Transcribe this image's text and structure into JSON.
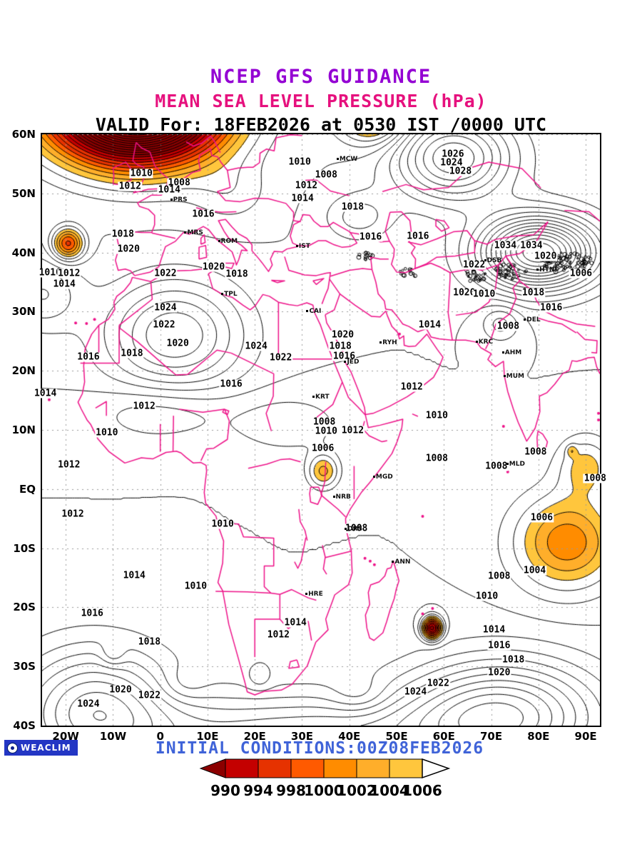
{
  "header": {
    "line1": "NCEP GFS GUIDANCE",
    "line2": "MEAN SEA LEVEL PRESSURE (hPa)",
    "line3": "VALID For: 18FEB2026 at 0530 IST /0000 UTC",
    "colors": {
      "title_source": "#9400d3",
      "title_variable": "#e6117e",
      "valid_line": "#000000"
    }
  },
  "map": {
    "lat_ticks": [
      {
        "label": "60N",
        "value": 60
      },
      {
        "label": "50N",
        "value": 50
      },
      {
        "label": "40N",
        "value": 40
      },
      {
        "label": "30N",
        "value": 30
      },
      {
        "label": "20N",
        "value": 20
      },
      {
        "label": "10N",
        "value": 10
      },
      {
        "label": "EQ",
        "value": 0
      },
      {
        "label": "10S",
        "value": -10
      },
      {
        "label": "20S",
        "value": -20
      },
      {
        "label": "30S",
        "value": -30
      },
      {
        "label": "40S",
        "value": -40
      }
    ],
    "lon_ticks": [
      {
        "label": "20W",
        "value": -20
      },
      {
        "label": "10W",
        "value": -10
      },
      {
        "label": "0",
        "value": 0
      },
      {
        "label": "10E",
        "value": 10
      },
      {
        "label": "20E",
        "value": 20
      },
      {
        "label": "30E",
        "value": 30
      },
      {
        "label": "40E",
        "value": 40
      },
      {
        "label": "50E",
        "value": 50
      },
      {
        "label": "60E",
        "value": 60
      },
      {
        "label": "70E",
        "value": 70
      },
      {
        "label": "80E",
        "value": 80
      },
      {
        "label": "90E",
        "value": 90
      }
    ],
    "grid_color": "#999999",
    "frame_color": "#000000"
  },
  "chart_data": {
    "type": "contour-map",
    "variable": "mean sea level pressure",
    "units": "hPa",
    "contour_interval": 2,
    "lon_range": [
      -25,
      93
    ],
    "lat_range": [
      -40,
      60
    ],
    "base_pressure": 1012,
    "contour_color": "#000000",
    "coastline_color": "#ee1289",
    "fill_levels": [
      990,
      994,
      998,
      1000,
      1002,
      1004,
      1006
    ],
    "pressure_systems": [
      {
        "name": "north-atlantic-deep-low",
        "lon": -5,
        "lat": 65,
        "amp": -58,
        "rx": 17,
        "ry": 9
      },
      {
        "name": "azores-ridge",
        "lon": -25,
        "lat": 33,
        "amp": 6,
        "rx": 8,
        "ry": 6
      },
      {
        "name": "atlantic-low",
        "lon": -19.5,
        "lat": 41.5,
        "amp": -15,
        "rx": 3.2,
        "ry": 2.6
      },
      {
        "name": "north-africa-high",
        "lon": 3,
        "lat": 26,
        "amp": 12,
        "rx": 14,
        "ry": 9
      },
      {
        "name": "itcz-west",
        "lon": 0,
        "lat": 13,
        "amp": -4,
        "rx": 14,
        "ry": 5
      },
      {
        "name": "itcz-east",
        "lon": 27,
        "lat": 11,
        "amp": -3.5,
        "rx": 12,
        "ry": 5
      },
      {
        "name": "east-africa-low",
        "lon": 34.5,
        "lat": 3,
        "amp": -8.5,
        "rx": 3.2,
        "ry": 2.8
      },
      {
        "name": "south-atlantic-high",
        "lon": -14,
        "lat": -37,
        "amp": 14,
        "rx": 16,
        "ry": 10
      },
      {
        "name": "south-indian-high",
        "lon": 72,
        "lat": -38,
        "amp": 17,
        "rx": 20,
        "ry": 9
      },
      {
        "name": "southern-ridge",
        "lon": 30,
        "lat": -42,
        "amp": 10,
        "rx": 40,
        "ry": 7
      },
      {
        "name": "mascarene-cyclone",
        "lon": 57.5,
        "lat": -23.5,
        "amp": -24,
        "rx": 2,
        "ry": 1.8
      },
      {
        "name": "se-indian-low",
        "lon": 86,
        "lat": -9,
        "amp": -11.5,
        "rx": 11,
        "ry": 8
      },
      {
        "name": "equatorial-io-low",
        "lon": 90,
        "lat": 4,
        "amp": -6.5,
        "rx": 6,
        "ry": 5
      },
      {
        "name": "io-small-low",
        "lon": 87,
        "lat": 6.5,
        "amp": -4,
        "rx": 1.1,
        "ry": 1
      },
      {
        "name": "central-asia-high",
        "lon": 80,
        "lat": 40,
        "amp": 28,
        "rx": 12,
        "ry": 6
      },
      {
        "name": "ural-high",
        "lon": 62,
        "lat": 56,
        "amp": 16,
        "rx": 12,
        "ry": 7
      },
      {
        "name": "north-russia-low",
        "lon": 45,
        "lat": 64,
        "amp": -16,
        "rx": 7,
        "ry": 5
      },
      {
        "name": "europe-trough",
        "lon": 15,
        "lat": 50,
        "amp": -3,
        "rx": 8,
        "ry": 5
      },
      {
        "name": "black-sea-ridge",
        "lon": 42,
        "lat": 46,
        "amp": 5,
        "rx": 7,
        "ry": 4
      },
      {
        "name": "south-asia-low",
        "lon": 72,
        "lat": 28,
        "amp": -5,
        "rx": 4,
        "ry": 3
      },
      {
        "name": "sh-wave-1",
        "lon": 5,
        "lat": -33,
        "amp": -2.5,
        "rx": 5,
        "ry": 3
      },
      {
        "name": "sh-wave-2",
        "lon": 42,
        "lat": -35,
        "amp": -3,
        "rx": 6,
        "ry": 3
      },
      {
        "name": "sh-wave-3",
        "lon": -10,
        "lat": -28,
        "amp": -3,
        "rx": 2.5,
        "ry": 2
      },
      {
        "name": "sh-wave-4",
        "lon": 21,
        "lat": -32,
        "amp": -2.5,
        "rx": 2.5,
        "ry": 2
      }
    ],
    "contour_labels": [
      {
        "value": 1010,
        "lon": 29.5,
        "lat": 55.3
      },
      {
        "value": 1008,
        "lon": 35.1,
        "lat": 53.1
      },
      {
        "value": 1012,
        "lon": 30.9,
        "lat": 51.3
      },
      {
        "value": 1014,
        "lon": 30.1,
        "lat": 49.1
      },
      {
        "value": 1018,
        "lon": 40.7,
        "lat": 47.7
      },
      {
        "value": 1016,
        "lon": 9.1,
        "lat": 46.5
      },
      {
        "value": 1010,
        "lon": -4,
        "lat": 53.3
      },
      {
        "value": 1008,
        "lon": 4,
        "lat": 51.8
      },
      {
        "value": 1012,
        "lon": -6.4,
        "lat": 51.2
      },
      {
        "value": 1014,
        "lon": 1.9,
        "lat": 50.6
      },
      {
        "value": 1018,
        "lon": -7.9,
        "lat": 43.1
      },
      {
        "value": 1020,
        "lon": -6.7,
        "lat": 40.5
      },
      {
        "value": 1010,
        "lon": -23.3,
        "lat": 36.6
      },
      {
        "value": 1012,
        "lon": -19.3,
        "lat": 36.5
      },
      {
        "value": 1014,
        "lon": -20.3,
        "lat": 34.6
      },
      {
        "value": 1022,
        "lon": 1.1,
        "lat": 36.4
      },
      {
        "value": 1020,
        "lon": 11.3,
        "lat": 37.5
      },
      {
        "value": 1018,
        "lon": 16.2,
        "lat": 36.3
      },
      {
        "value": 1026,
        "lon": 61.9,
        "lat": 56.6
      },
      {
        "value": 1024,
        "lon": 61.6,
        "lat": 55.2
      },
      {
        "value": 1028,
        "lon": 63.5,
        "lat": 53.7
      },
      {
        "value": 1016,
        "lon": 44.5,
        "lat": 42.6
      },
      {
        "value": 1016,
        "lon": 54.5,
        "lat": 42.7
      },
      {
        "value": 1034,
        "lon": 73,
        "lat": 41.1
      },
      {
        "value": 1034,
        "lon": 78.5,
        "lat": 41.1
      },
      {
        "value": 1020,
        "lon": 81.5,
        "lat": 39.4
      },
      {
        "value": 1022,
        "lon": 66.4,
        "lat": 37.9
      },
      {
        "value": 1006,
        "lon": 89,
        "lat": 36.4
      },
      {
        "value": 1016,
        "lon": 82.7,
        "lat": 30.7
      },
      {
        "value": 1020,
        "lon": 64.3,
        "lat": 33.2
      },
      {
        "value": 1010,
        "lon": 68.5,
        "lat": 33
      },
      {
        "value": 1018,
        "lon": 78.9,
        "lat": 33.2
      },
      {
        "value": 1024,
        "lon": 1.1,
        "lat": 30.6
      },
      {
        "value": 1022,
        "lon": 0.8,
        "lat": 27.7
      },
      {
        "value": 1020,
        "lon": 3.7,
        "lat": 24.6
      },
      {
        "value": 1024,
        "lon": 20.3,
        "lat": 24.1
      },
      {
        "value": 1022,
        "lon": 25.5,
        "lat": 22.2
      },
      {
        "value": 1020,
        "lon": 38.6,
        "lat": 26.1
      },
      {
        "value": 1018,
        "lon": 38.1,
        "lat": 24.1
      },
      {
        "value": 1016,
        "lon": 38.9,
        "lat": 22.4
      },
      {
        "value": 1014,
        "lon": 57,
        "lat": 27.8
      },
      {
        "value": 1008,
        "lon": 73.6,
        "lat": 27.5
      },
      {
        "value": 1016,
        "lon": -15.2,
        "lat": 22.3
      },
      {
        "value": 1018,
        "lon": -6,
        "lat": 22.9
      },
      {
        "value": 1016,
        "lon": 15,
        "lat": 17.7
      },
      {
        "value": 1012,
        "lon": 53.2,
        "lat": 17.2
      },
      {
        "value": 1014,
        "lon": -24.3,
        "lat": 16.1
      },
      {
        "value": 1012,
        "lon": -3.4,
        "lat": 14
      },
      {
        "value": 1010,
        "lon": -11.3,
        "lat": 9.5
      },
      {
        "value": 1008,
        "lon": 34.7,
        "lat": 11.3
      },
      {
        "value": 1010,
        "lon": 35.1,
        "lat": 9.7
      },
      {
        "value": 1012,
        "lon": 40.7,
        "lat": 9.9
      },
      {
        "value": 1010,
        "lon": 58.5,
        "lat": 12.4
      },
      {
        "value": 1006,
        "lon": 34.4,
        "lat": 6.8
      },
      {
        "value": 1008,
        "lon": 58.5,
        "lat": 5.2
      },
      {
        "value": 1008,
        "lon": 71.1,
        "lat": 3.9
      },
      {
        "value": 1008,
        "lon": 79.4,
        "lat": 6.3
      },
      {
        "value": 1008,
        "lon": 92,
        "lat": 1.8
      },
      {
        "value": 1012,
        "lon": -19.3,
        "lat": 4.1
      },
      {
        "value": 1012,
        "lon": -18.5,
        "lat": -4.3
      },
      {
        "value": 1010,
        "lon": 13.2,
        "lat": -5.9
      },
      {
        "value": 1008,
        "lon": 41.5,
        "lat": -6.7
      },
      {
        "value": 1006,
        "lon": 80.7,
        "lat": -4.8
      },
      {
        "value": 1004,
        "lon": 79.2,
        "lat": -13.8
      },
      {
        "value": 1008,
        "lon": 71.7,
        "lat": -14.7
      },
      {
        "value": 1010,
        "lon": 69.1,
        "lat": -18.2
      },
      {
        "value": 1010,
        "lon": 7.5,
        "lat": -16.4
      },
      {
        "value": 1014,
        "lon": -5.5,
        "lat": -14.6
      },
      {
        "value": 1016,
        "lon": -14.4,
        "lat": -21
      },
      {
        "value": 1014,
        "lon": 28.6,
        "lat": -22.6
      },
      {
        "value": 1012,
        "lon": 25,
        "lat": -24.7
      },
      {
        "value": 1018,
        "lon": -2.3,
        "lat": -25.9
      },
      {
        "value": 1014,
        "lon": 70.6,
        "lat": -23.8
      },
      {
        "value": 1016,
        "lon": 71.7,
        "lat": -26.5
      },
      {
        "value": 1018,
        "lon": 74.7,
        "lat": -28.9
      },
      {
        "value": 1020,
        "lon": 71.7,
        "lat": -31.1
      },
      {
        "value": 1022,
        "lon": 58.8,
        "lat": -32.9
      },
      {
        "value": 1024,
        "lon": 54,
        "lat": -34.3
      },
      {
        "value": 1020,
        "lon": -8.4,
        "lat": -34
      },
      {
        "value": 1022,
        "lon": -2.3,
        "lat": -34.9
      },
      {
        "value": 1024,
        "lon": -15.2,
        "lat": -36.4
      }
    ]
  },
  "stations": [
    {
      "code": "MCW",
      "lon": 37.6,
      "lat": 55.8
    },
    {
      "code": "PRS",
      "lon": 2.4,
      "lat": 48.9
    },
    {
      "code": "MRS",
      "lon": 5.4,
      "lat": 43.3
    },
    {
      "code": "ROM",
      "lon": 12.5,
      "lat": 41.9
    },
    {
      "code": "IST",
      "lon": 29,
      "lat": 41
    },
    {
      "code": "CAI",
      "lon": 31.2,
      "lat": 30.1
    },
    {
      "code": "TPL",
      "lon": 13.2,
      "lat": 32.9
    },
    {
      "code": "KRT",
      "lon": 32.5,
      "lat": 15.6
    },
    {
      "code": "JED",
      "lon": 39.2,
      "lat": 21.5
    },
    {
      "code": "RYH",
      "lon": 46.7,
      "lat": 24.7
    },
    {
      "code": "KRC",
      "lon": 67,
      "lat": 24.9
    },
    {
      "code": "AHM",
      "lon": 72.6,
      "lat": 23
    },
    {
      "code": "MUM",
      "lon": 72.9,
      "lat": 19.1
    },
    {
      "code": "DEL",
      "lon": 77.2,
      "lat": 28.6
    },
    {
      "code": "HTN",
      "lon": 79.9,
      "lat": 37.1
    },
    {
      "code": "DSB",
      "lon": 68.8,
      "lat": 38.6
    },
    {
      "code": "MLD",
      "lon": 73.5,
      "lat": 4.2
    },
    {
      "code": "MGD",
      "lon": 45.3,
      "lat": 2
    },
    {
      "code": "NRB",
      "lon": 36.8,
      "lat": -1.3
    },
    {
      "code": "DRS",
      "lon": 39.3,
      "lat": -6.8
    },
    {
      "code": "ANN",
      "lon": 49.3,
      "lat": -12.3
    },
    {
      "code": "HRE",
      "lon": 31,
      "lat": -17.8
    }
  ],
  "colorbar": {
    "boundary_values": [
      "990",
      "994",
      "998",
      "1000",
      "1002",
      "1004",
      "1006"
    ],
    "segment_colors": [
      "#8b0000",
      "#c40000",
      "#e63200",
      "#ff5a00",
      "#ff8c00",
      "#ffae2a",
      "#ffc63d"
    ],
    "right_arrow_color": "#ffffff"
  },
  "footer": {
    "initial_conditions": "INITIAL CONDITIONS:00Z08FEB2026",
    "initial_color": "#3f63d8",
    "logo_text": "WEACLIM",
    "logo_bg": "#2336c4",
    "logo_fg": "#ffffff"
  }
}
